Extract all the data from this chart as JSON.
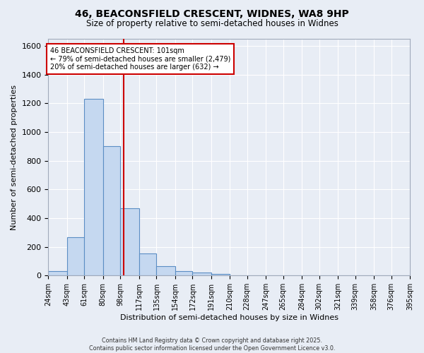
{
  "title_line1": "46, BEACONSFIELD CRESCENT, WIDNES, WA8 9HP",
  "title_line2": "Size of property relative to semi-detached houses in Widnes",
  "xlabel": "Distribution of semi-detached houses by size in Widnes",
  "ylabel": "Number of semi-detached properties",
  "bar_edges": [
    24,
    43,
    61,
    80,
    98,
    117,
    135,
    154,
    172,
    191,
    210,
    228,
    247,
    265,
    284,
    302,
    321,
    339,
    358,
    376,
    395
  ],
  "bar_heights": [
    30,
    265,
    1230,
    900,
    470,
    155,
    65,
    30,
    20,
    10,
    0,
    0,
    0,
    0,
    0,
    0,
    0,
    0,
    0,
    0
  ],
  "bar_color": "#c5d8f0",
  "bar_edge_color": "#5b8ec4",
  "property_line_x": 101,
  "red_line_color": "#cc0000",
  "annotation_text": "46 BEACONSFIELD CRESCENT: 101sqm\n← 79% of semi-detached houses are smaller (2,479)\n20% of semi-detached houses are larger (632) →",
  "annotation_box_color": "#ffffff",
  "annotation_box_edge_color": "#cc0000",
  "ylim": [
    0,
    1650
  ],
  "yticks": [
    0,
    200,
    400,
    600,
    800,
    1000,
    1200,
    1400,
    1600
  ],
  "tick_labels": [
    "24sqm",
    "43sqm",
    "61sqm",
    "80sqm",
    "98sqm",
    "117sqm",
    "135sqm",
    "154sqm",
    "172sqm",
    "191sqm",
    "210sqm",
    "228sqm",
    "247sqm",
    "265sqm",
    "284sqm",
    "302sqm",
    "321sqm",
    "339sqm",
    "358sqm",
    "376sqm",
    "395sqm"
  ],
  "bg_color": "#e8edf5",
  "grid_color": "#ffffff",
  "footer_line1": "Contains HM Land Registry data © Crown copyright and database right 2025.",
  "footer_line2": "Contains public sector information licensed under the Open Government Licence v3.0."
}
